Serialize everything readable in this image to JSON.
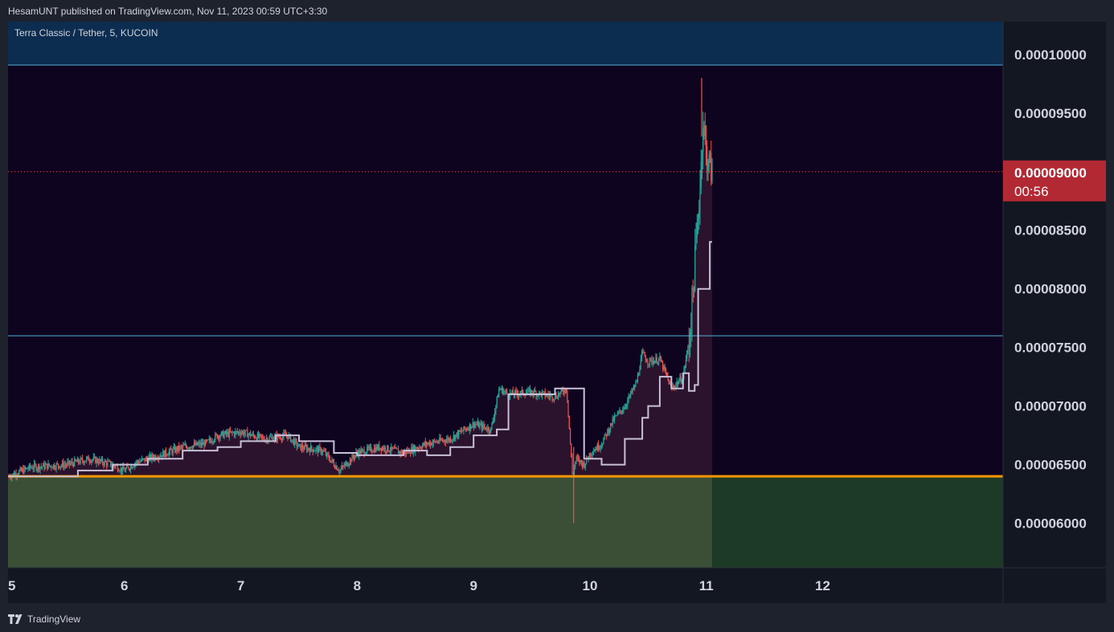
{
  "header": {
    "published_text": "HesamUNT published on TradingView.com, Nov 11, 2023 00:59 UTC+3:30"
  },
  "footer": {
    "brand": "TradingView",
    "logo_icon": "tradingview-logo-icon"
  },
  "colors": {
    "background": "#131722",
    "plot_background": "#0f0420",
    "top_zone": "#0c2d4f",
    "support_line": "#ff9800",
    "green_zone_past": "#3a4f36",
    "green_zone_future": "#1d3a26",
    "level_line": "#4fb0d6",
    "candle_up": "#26a69a",
    "candle_down": "#ef5350",
    "trail_line": "#c8c0d8",
    "price_label_bg": "#b22833"
  },
  "chart_data": {
    "type": "line",
    "title": "Terra Classic / Tether, 5, KUCOIN",
    "x_label": "",
    "y_label": "",
    "x_ticks": [
      "5",
      "6",
      "7",
      "8",
      "9",
      "10",
      "11",
      "12"
    ],
    "y_ticks": [
      "0.00010000",
      "0.00009500",
      "0.00008500",
      "0.00008000",
      "0.00007500",
      "0.00007000",
      "0.00006500",
      "0.00006000"
    ],
    "y_range": [
      5.62e-05,
      0.0001028
    ],
    "x_range_days": [
      5,
      13.55
    ],
    "grid": false,
    "current_price": {
      "value": "0.00009000",
      "countdown": "00:56",
      "numeric": 9e-05
    },
    "levels": {
      "top_zone_bottom": 9.91e-05,
      "mid_line": 7.6e-05,
      "support": 6.4e-05,
      "green_zone_end_day": 11.05
    },
    "price_series": {
      "name": "",
      "x": [
        5.0,
        5.2,
        5.5,
        5.7,
        5.9,
        6.0,
        6.1,
        6.3,
        6.5,
        6.7,
        6.8,
        7.0,
        7.2,
        7.4,
        7.5,
        7.7,
        7.85,
        8.0,
        8.2,
        8.4,
        8.6,
        8.8,
        9.0,
        9.15,
        9.22,
        9.3,
        9.5,
        9.7,
        9.8,
        9.85,
        9.88,
        9.95,
        10.0,
        10.1,
        10.2,
        10.3,
        10.4,
        10.45,
        10.5,
        10.6,
        10.7,
        10.8,
        10.85,
        10.88,
        10.92,
        10.95,
        10.97,
        11.0,
        11.03,
        11.05
      ],
      "values": [
        6.4e-05,
        6.48e-05,
        6.5e-05,
        6.55e-05,
        6.5e-05,
        6.45e-05,
        6.52e-05,
        6.58e-05,
        6.65e-05,
        6.68e-05,
        6.75e-05,
        6.78e-05,
        6.72e-05,
        6.75e-05,
        6.65e-05,
        6.62e-05,
        6.45e-05,
        6.6e-05,
        6.65e-05,
        6.6e-05,
        6.68e-05,
        6.72e-05,
        6.85e-05,
        6.8e-05,
        7.15e-05,
        7.1e-05,
        7.12e-05,
        7.08e-05,
        7.15e-05,
        6.4e-05,
        6.55e-05,
        6.5e-05,
        6.6e-05,
        6.68e-05,
        6.88e-05,
        7e-05,
        7.2e-05,
        7.45e-05,
        7.38e-05,
        7.4e-05,
        7.15e-05,
        7.25e-05,
        7.55e-05,
        7.9e-05,
        8.5e-05,
        8.95e-05,
        9.45e-05,
        9.15e-05,
        9.05e-05,
        9e-05
      ]
    },
    "price_extremes": {
      "spike_low": 6e-05,
      "spike_high": 9.8e-05
    },
    "trail_series": {
      "name": "",
      "x": [
        5.0,
        5.6,
        5.9,
        6.2,
        6.5,
        6.8,
        7.0,
        7.3,
        7.5,
        7.8,
        8.0,
        8.4,
        8.6,
        8.8,
        9.0,
        9.2,
        9.3,
        9.5,
        9.7,
        9.89,
        9.95,
        10.1,
        10.3,
        10.45,
        10.5,
        10.6,
        10.7,
        10.8,
        10.85,
        10.9,
        10.93,
        11.0,
        11.03,
        11.05
      ],
      "values": [
        6.4e-05,
        6.45e-05,
        6.5e-05,
        6.55e-05,
        6.62e-05,
        6.65e-05,
        6.7e-05,
        6.75e-05,
        6.7e-05,
        6.6e-05,
        6.58e-05,
        6.62e-05,
        6.58e-05,
        6.65e-05,
        6.75e-05,
        6.8e-05,
        7.1e-05,
        7.1e-05,
        7.15e-05,
        7.15e-05,
        6.55e-05,
        6.5e-05,
        6.72e-05,
        6.9e-05,
        7e-05,
        7.25e-05,
        7.15e-05,
        7.28e-05,
        7.13e-05,
        7.18e-05,
        8e-05,
        8e-05,
        8.4e-05,
        8.4e-05
      ]
    }
  }
}
